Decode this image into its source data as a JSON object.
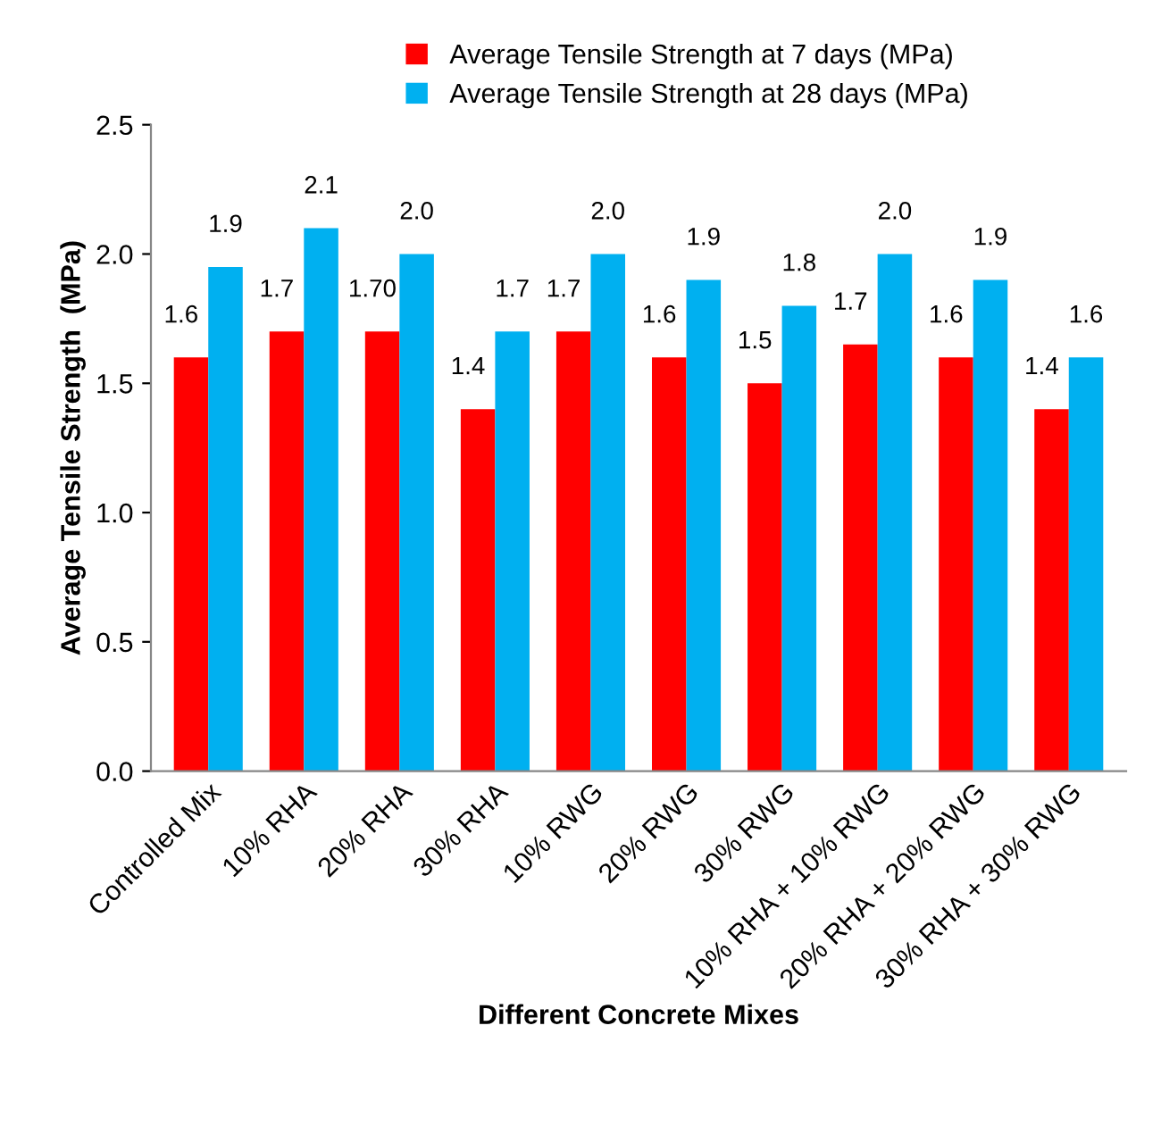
{
  "chart_data": {
    "type": "bar",
    "xlabel": "Different Concrete Mixes",
    "ylabel": "Average Tensile Strength  (MPa)",
    "categories": [
      "Controlled Mix",
      "10% RHA",
      "20% RHA",
      "30% RHA",
      "10% RWG",
      "20% RWG",
      "30% RWG",
      "10% RHA + 10% RWG",
      "20% RHA + 20% RWG",
      "30% RHA + 30% RWG"
    ],
    "series": [
      {
        "name": "Average Tensile Strength at 7 days (MPa)",
        "color": "#ff0000",
        "values": [
          1.6,
          1.7,
          1.7,
          1.4,
          1.7,
          1.6,
          1.5,
          1.65,
          1.6,
          1.4
        ],
        "value_labels": [
          "1.6",
          "1.7",
          "1.70",
          "1.4",
          "1.7",
          "1.6",
          "1.5",
          "1.7",
          "1.6",
          "1.4"
        ]
      },
      {
        "name": "Average Tensile Strength at 28 days (MPa)",
        "color": "#00b0f0",
        "values": [
          1.95,
          2.1,
          2.0,
          1.7,
          2.0,
          1.9,
          1.8,
          2.0,
          1.9,
          1.6
        ],
        "value_labels": [
          "1.9",
          "2.1",
          "2.0",
          "1.7",
          "2.0",
          "1.9",
          "1.8",
          "2.0",
          "1.9",
          "1.6"
        ]
      }
    ],
    "ylim": [
      0,
      2.5
    ],
    "yticks": [
      "0.0",
      "0.5",
      "1.0",
      "1.5",
      "2.0",
      "2.5"
    ],
    "grid": false,
    "legend": "top"
  }
}
